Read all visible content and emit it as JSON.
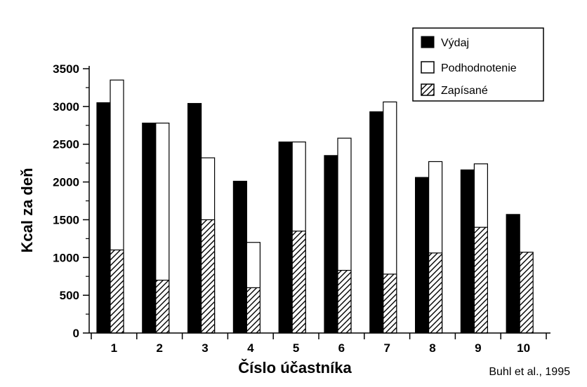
{
  "chart_data": {
    "type": "bar",
    "title": "",
    "xlabel": "Číslo účastníka",
    "ylabel": "Kcal za deň",
    "categories": [
      "1",
      "2",
      "3",
      "4",
      "5",
      "6",
      "7",
      "8",
      "9",
      "10"
    ],
    "ylim": [
      0,
      3500
    ],
    "yticks": [
      0,
      500,
      1000,
      1500,
      2000,
      2500,
      3000,
      3500
    ],
    "ytick_labels": [
      "0",
      "500",
      "1000",
      "1500",
      "2000",
      "2500",
      "3000",
      "3500"
    ],
    "series": [
      {
        "name": "Výdaj",
        "fill": "solid",
        "color": "#000000",
        "values": [
          3050,
          2780,
          3040,
          2010,
          2530,
          2350,
          2930,
          2060,
          2160,
          1570
        ]
      },
      {
        "name": "Podhodnotenie",
        "fill": "open",
        "color": "#ffffff",
        "values": [
          3350,
          2780,
          2320,
          1200,
          2530,
          2580,
          3060,
          2270,
          2240,
          null
        ]
      },
      {
        "name": "Zapísané",
        "fill": "hatched",
        "color": "#000000",
        "values": [
          1100,
          700,
          1500,
          600,
          1350,
          830,
          780,
          1060,
          1400,
          1070
        ]
      }
    ],
    "legend_position": "top-right",
    "grid": false
  },
  "source_note": "Buhl et al., 1995"
}
